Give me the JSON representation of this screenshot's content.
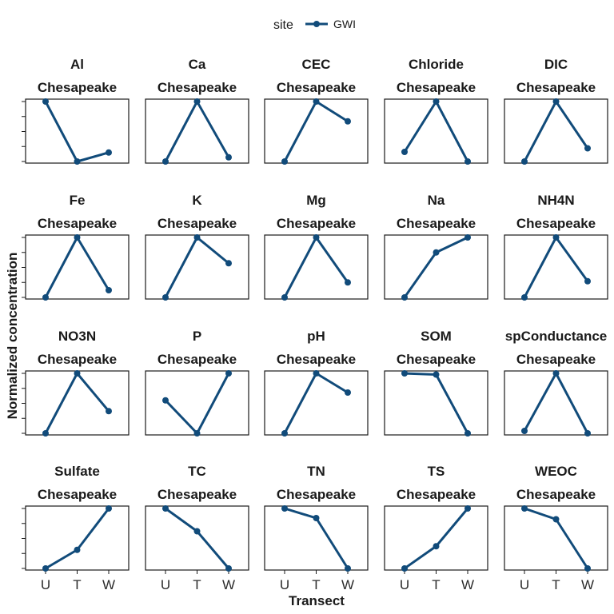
{
  "chart_data": {
    "type": "line",
    "legend": {
      "title": "site",
      "position": "top",
      "entries": [
        {
          "name": "GWI",
          "color": "#114b7a"
        }
      ]
    },
    "xlabel": "Transect",
    "ylabel": "Normalized concentration",
    "categories": [
      "U",
      "T",
      "W"
    ],
    "strip_label": "Chesapeake",
    "ylim": [
      0,
      1
    ],
    "y_ticks": [
      0,
      0.25,
      0.5,
      0.75,
      1.0
    ],
    "y_tick_labels_shown": false,
    "panels": [
      {
        "title": "Al",
        "values": [
          1.0,
          0.0,
          0.15
        ]
      },
      {
        "title": "Ca",
        "values": [
          0.0,
          1.0,
          0.07
        ]
      },
      {
        "title": "CEC",
        "values": [
          0.0,
          1.0,
          0.67
        ]
      },
      {
        "title": "Chloride",
        "values": [
          0.16,
          1.0,
          0.0
        ]
      },
      {
        "title": "DIC",
        "values": [
          0.0,
          1.0,
          0.22
        ]
      },
      {
        "title": "Fe",
        "values": [
          0.0,
          1.0,
          0.12
        ]
      },
      {
        "title": "K",
        "values": [
          0.0,
          1.0,
          0.57
        ]
      },
      {
        "title": "Mg",
        "values": [
          0.0,
          1.0,
          0.25
        ]
      },
      {
        "title": "Na",
        "values": [
          0.0,
          0.75,
          1.0
        ]
      },
      {
        "title": "NH4N",
        "values": [
          0.0,
          1.0,
          0.27
        ]
      },
      {
        "title": "NO3N",
        "values": [
          0.0,
          1.0,
          0.37
        ]
      },
      {
        "title": "P",
        "values": [
          0.55,
          0.0,
          1.0
        ]
      },
      {
        "title": "pH",
        "values": [
          0.0,
          1.0,
          0.68
        ]
      },
      {
        "title": "SOM",
        "values": [
          1.0,
          0.98,
          0.0
        ]
      },
      {
        "title": "spConductance",
        "values": [
          0.04,
          1.0,
          0.0
        ]
      },
      {
        "title": "Sulfate",
        "values": [
          0.0,
          0.31,
          1.0
        ]
      },
      {
        "title": "TC",
        "values": [
          1.0,
          0.62,
          0.0
        ]
      },
      {
        "title": "TN",
        "values": [
          1.0,
          0.84,
          0.0
        ]
      },
      {
        "title": "TS",
        "values": [
          0.0,
          0.37,
          1.0
        ]
      },
      {
        "title": "WEOC",
        "values": [
          1.0,
          0.82,
          0.0
        ]
      }
    ]
  }
}
